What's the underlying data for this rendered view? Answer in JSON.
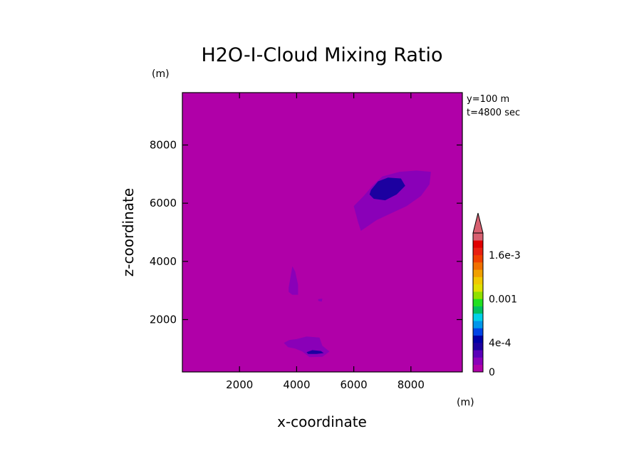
{
  "chart_data": {
    "type": "contour",
    "title": "H2O-I-Cloud Mixing Ratio",
    "xlabel": "x-coordinate",
    "ylabel": "z-coordinate",
    "x_unit": "(m)",
    "y_unit": "(m)",
    "xlim": [
      0,
      9800
    ],
    "ylim": [
      200,
      9800
    ],
    "x_ticks": [
      2000,
      4000,
      6000,
      8000
    ],
    "y_ticks": [
      2000,
      4000,
      6000,
      8000
    ],
    "annotations": [
      "y=100 m",
      "t=4800 sec"
    ],
    "background_value": 0,
    "colorbar": {
      "levels": [
        0,
        0.0001,
        0.0002,
        0.0003,
        0.0004,
        0.0005,
        0.0006,
        0.0007,
        0.0008,
        0.0009,
        0.001,
        0.0011,
        0.0012,
        0.0013,
        0.0014,
        0.0015,
        0.0016,
        0.0017,
        0.0018,
        0.0019,
        0.002
      ],
      "tick_values": [
        0,
        0.0004,
        0.001,
        0.0016
      ],
      "tick_labels": [
        "0",
        "4e-4",
        "0.001",
        "1.6e-3"
      ],
      "colors": [
        "#b000a8",
        "#8a00b8",
        "#5a00b8",
        "#1c00a0",
        "#0000a6",
        "#0044e6",
        "#0096ea",
        "#00d0e8",
        "#00c060",
        "#20e020",
        "#90e000",
        "#e0e000",
        "#f0c800",
        "#f0a000",
        "#f07000",
        "#f04000",
        "#e82010",
        "#e00000",
        "#d86070"
      ],
      "extend": "max"
    },
    "regions": [
      {
        "name": "upper-cloud-outer",
        "level": 1,
        "points": [
          [
            6350,
            6250
          ],
          [
            6650,
            6600
          ],
          [
            7000,
            6920
          ],
          [
            7600,
            7080
          ],
          [
            8200,
            7120
          ],
          [
            8700,
            7080
          ],
          [
            8650,
            6650
          ],
          [
            8350,
            6250
          ],
          [
            7850,
            5900
          ],
          [
            7300,
            5650
          ],
          [
            6800,
            5420
          ],
          [
            6250,
            5050
          ],
          [
            6150,
            5350
          ],
          [
            6000,
            5900
          ]
        ]
      },
      {
        "name": "upper-cloud-core",
        "level": 3,
        "points": [
          [
            6600,
            6450
          ],
          [
            6850,
            6750
          ],
          [
            7200,
            6880
          ],
          [
            7650,
            6850
          ],
          [
            7800,
            6600
          ],
          [
            7500,
            6300
          ],
          [
            7100,
            6100
          ],
          [
            6700,
            6150
          ],
          [
            6550,
            6300
          ]
        ]
      },
      {
        "name": "mid-patch",
        "level": 1,
        "points": [
          [
            3720,
            3100
          ],
          [
            3800,
            3550
          ],
          [
            3850,
            3830
          ],
          [
            3950,
            3650
          ],
          [
            4050,
            3200
          ],
          [
            4050,
            2850
          ],
          [
            3850,
            2850
          ],
          [
            3720,
            2950
          ]
        ]
      },
      {
        "name": "lower-cloud-outer",
        "level": 1,
        "points": [
          [
            3550,
            1200
          ],
          [
            3750,
            1300
          ],
          [
            4000,
            1330
          ],
          [
            4350,
            1420
          ],
          [
            4800,
            1380
          ],
          [
            4900,
            1100
          ],
          [
            5150,
            900
          ],
          [
            4900,
            720
          ],
          [
            4450,
            710
          ],
          [
            4200,
            900
          ],
          [
            3950,
            1000
          ],
          [
            3700,
            1050
          ]
        ]
      },
      {
        "name": "lower-cloud-core",
        "level": 3,
        "points": [
          [
            4350,
            880
          ],
          [
            4550,
            950
          ],
          [
            4850,
            920
          ],
          [
            4950,
            850
          ],
          [
            4700,
            820
          ],
          [
            4400,
            820
          ]
        ]
      },
      {
        "name": "small-dot",
        "level": 1,
        "points": [
          [
            4750,
            2700
          ],
          [
            4900,
            2720
          ],
          [
            4880,
            2620
          ],
          [
            4760,
            2640
          ]
        ]
      }
    ]
  }
}
